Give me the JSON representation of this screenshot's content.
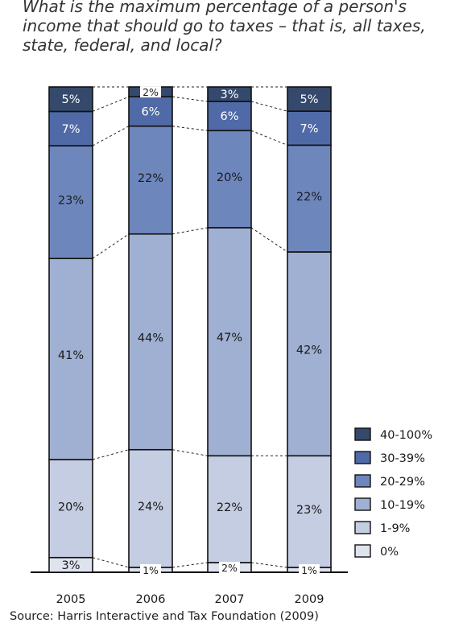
{
  "title": "What is the maximum percentage of a person's income that should go to taxes – that is, all taxes, state, federal, and local?",
  "source": "Source: Harris Interactive and Tax Foundation (2009)",
  "chart_data": {
    "type": "bar",
    "stacked": true,
    "categories": [
      "2005",
      "2006",
      "2007",
      "2009"
    ],
    "series": [
      {
        "name": "0%",
        "values": [
          3,
          1,
          2,
          1
        ],
        "labels": [
          "3%",
          "1%",
          "2%",
          "1%"
        ],
        "color": "#dfe3ee"
      },
      {
        "name": "1-9%",
        "values": [
          20,
          24,
          22,
          23
        ],
        "labels": [
          "20%",
          "24%",
          "22%",
          "23%"
        ],
        "color": "#c5cde2"
      },
      {
        "name": "10-19%",
        "values": [
          41,
          44,
          47,
          42
        ],
        "labels": [
          "41%",
          "44%",
          "47%",
          "42%"
        ],
        "color": "#9fb0d2"
      },
      {
        "name": "20-29%",
        "values": [
          23,
          22,
          20,
          22
        ],
        "labels": [
          "23%",
          "22%",
          "20%",
          "22%"
        ],
        "color": "#6d87bd"
      },
      {
        "name": "30-39%",
        "values": [
          7,
          6,
          6,
          7
        ],
        "labels": [
          "7%",
          "6%",
          "6%",
          "7%"
        ],
        "color": "#4f6aa6"
      },
      {
        "name": "40-100%",
        "values": [
          5,
          2,
          3,
          5
        ],
        "labels": [
          "5%",
          "2%",
          "3%",
          "5%"
        ],
        "color": "#34496c"
      }
    ],
    "legend": [
      "40-100%",
      "30-39%",
      "20-29%",
      "10-19%",
      "1-9%",
      "0%"
    ],
    "legend_position": "bottom-right",
    "connector_lines": "dashed",
    "ylim": [
      0,
      100
    ],
    "grid": false,
    "xlabel": "",
    "ylabel": ""
  }
}
